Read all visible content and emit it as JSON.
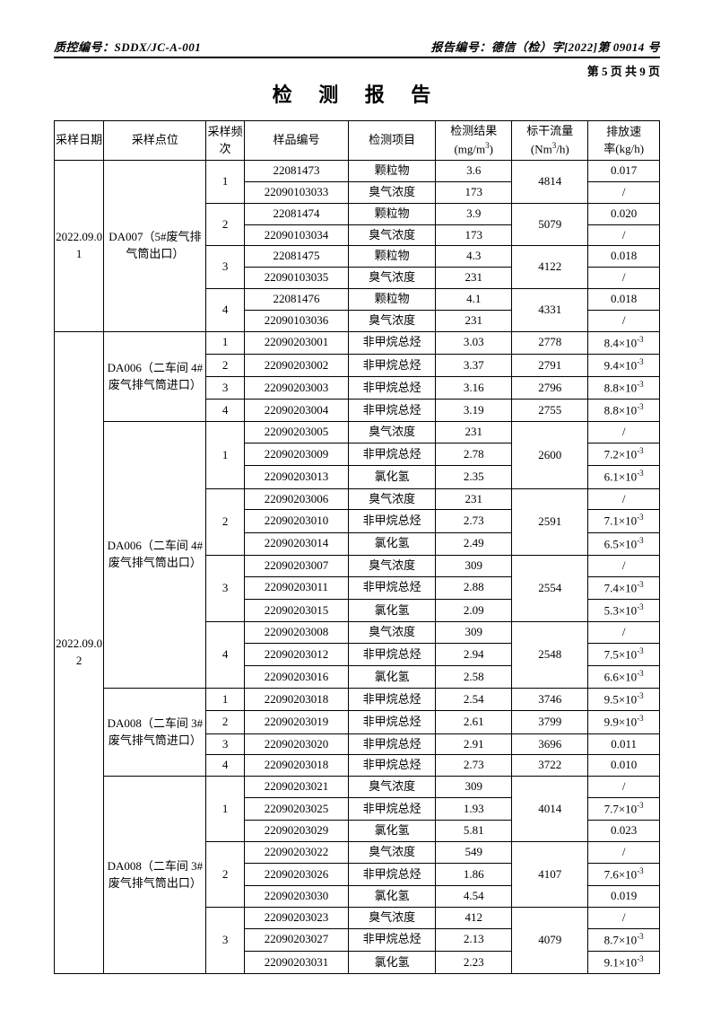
{
  "header": {
    "qc_label": "质控编号：SDDX/JC-A-001",
    "report_label": "报告编号：德信（检）字[2022]第 09014 号",
    "page_num": "第 5 页 共 9 页",
    "title": "检 测 报 告"
  },
  "columns": {
    "c1": "采样日期",
    "c2": "采样点位",
    "c3": "采样频次",
    "c4": "样品编号",
    "c5": "检测项目",
    "c6_l1": "检测结果",
    "c6_l2": "(mg/m",
    "c6_sup": "3",
    "c6_l3": ")",
    "c7_l1": "标干流量",
    "c7_l2": "(Nm",
    "c7_sup": "3",
    "c7_l3": "/h)",
    "c8_l1": "排放速",
    "c8_l2": "率(kg/h)"
  },
  "dates": {
    "d1": "2022.09.01",
    "d2": "2022.09.02"
  },
  "locs": {
    "l1": "DA007（5#废气排气筒出口）",
    "l2": "DA006（二车间 4#废气排气筒进口）",
    "l3": "DA006（二车间 4#废气排气筒出口）",
    "l4": "DA008（二车间 3#废气排气筒进口）",
    "l5": "DA008（二车间 3#废气排气筒出口）"
  },
  "freq": {
    "f1": "1",
    "f2": "2",
    "f3": "3",
    "f4": "4"
  },
  "items": {
    "pm": "颗粒物",
    "odor": "臭气浓度",
    "nmhc": "非甲烷总烃",
    "hcl": "氯化氢"
  },
  "slash": "/",
  "rows": [
    {
      "s": "22081473",
      "i": "pm",
      "r": "3.6",
      "f": "4814",
      "e": "0.017"
    },
    {
      "s": "22090103033",
      "i": "odor",
      "r": "173",
      "f": "",
      "e": "/"
    },
    {
      "s": "22081474",
      "i": "pm",
      "r": "3.9",
      "f": "5079",
      "e": "0.020"
    },
    {
      "s": "22090103034",
      "i": "odor",
      "r": "173",
      "f": "",
      "e": "/"
    },
    {
      "s": "22081475",
      "i": "pm",
      "r": "4.3",
      "f": "4122",
      "e": "0.018"
    },
    {
      "s": "22090103035",
      "i": "odor",
      "r": "231",
      "f": "",
      "e": "/"
    },
    {
      "s": "22081476",
      "i": "pm",
      "r": "4.1",
      "f": "4331",
      "e": "0.018"
    },
    {
      "s": "22090103036",
      "i": "odor",
      "r": "231",
      "f": "",
      "e": "/"
    },
    {
      "s": "22090203001",
      "i": "nmhc",
      "r": "3.03",
      "f": "2778",
      "e": "8.4×10",
      "sup": "-3"
    },
    {
      "s": "22090203002",
      "i": "nmhc",
      "r": "3.37",
      "f": "2791",
      "e": "9.4×10",
      "sup": "-3"
    },
    {
      "s": "22090203003",
      "i": "nmhc",
      "r": "3.16",
      "f": "2796",
      "e": "8.8×10",
      "sup": "-3"
    },
    {
      "s": "22090203004",
      "i": "nmhc",
      "r": "3.19",
      "f": "2755",
      "e": "8.8×10",
      "sup": "-3"
    },
    {
      "s": "22090203005",
      "i": "odor",
      "r": "231",
      "f": "2600",
      "e": "/"
    },
    {
      "s": "22090203009",
      "i": "nmhc",
      "r": "2.78",
      "f": "",
      "e": "7.2×10",
      "sup": "-3"
    },
    {
      "s": "22090203013",
      "i": "hcl",
      "r": "2.35",
      "f": "",
      "e": "6.1×10",
      "sup": "-3"
    },
    {
      "s": "22090203006",
      "i": "odor",
      "r": "231",
      "f": "2591",
      "e": "/"
    },
    {
      "s": "22090203010",
      "i": "nmhc",
      "r": "2.73",
      "f": "",
      "e": "7.1×10",
      "sup": "-3"
    },
    {
      "s": "22090203014",
      "i": "hcl",
      "r": "2.49",
      "f": "",
      "e": "6.5×10",
      "sup": "-3"
    },
    {
      "s": "22090203007",
      "i": "odor",
      "r": "309",
      "f": "2554",
      "e": "/"
    },
    {
      "s": "22090203011",
      "i": "nmhc",
      "r": "2.88",
      "f": "",
      "e": "7.4×10",
      "sup": "-3"
    },
    {
      "s": "22090203015",
      "i": "hcl",
      "r": "2.09",
      "f": "",
      "e": "5.3×10",
      "sup": "-3"
    },
    {
      "s": "22090203008",
      "i": "odor",
      "r": "309",
      "f": "2548",
      "e": "/"
    },
    {
      "s": "22090203012",
      "i": "nmhc",
      "r": "2.94",
      "f": "",
      "e": "7.5×10",
      "sup": "-3"
    },
    {
      "s": "22090203016",
      "i": "hcl",
      "r": "2.58",
      "f": "",
      "e": "6.6×10",
      "sup": "-3"
    },
    {
      "s": "22090203018",
      "i": "nmhc",
      "r": "2.54",
      "f": "3746",
      "e": "9.5×10",
      "sup": "-3"
    },
    {
      "s": "22090203019",
      "i": "nmhc",
      "r": "2.61",
      "f": "3799",
      "e": "9.9×10",
      "sup": "-3"
    },
    {
      "s": "22090203020",
      "i": "nmhc",
      "r": "2.91",
      "f": "3696",
      "e": "0.011"
    },
    {
      "s": "22090203018",
      "i": "nmhc",
      "r": "2.73",
      "f": "3722",
      "e": "0.010"
    },
    {
      "s": "22090203021",
      "i": "odor",
      "r": "309",
      "f": "4014",
      "e": "/"
    },
    {
      "s": "22090203025",
      "i": "nmhc",
      "r": "1.93",
      "f": "",
      "e": "7.7×10",
      "sup": "-3"
    },
    {
      "s": "22090203029",
      "i": "hcl",
      "r": "5.81",
      "f": "",
      "e": "0.023"
    },
    {
      "s": "22090203022",
      "i": "odor",
      "r": "549",
      "f": "4107",
      "e": "/"
    },
    {
      "s": "22090203026",
      "i": "nmhc",
      "r": "1.86",
      "f": "",
      "e": "7.6×10",
      "sup": "-3"
    },
    {
      "s": "22090203030",
      "i": "hcl",
      "r": "4.54",
      "f": "",
      "e": "0.019"
    },
    {
      "s": "22090203023",
      "i": "odor",
      "r": "412",
      "f": "4079",
      "e": "/"
    },
    {
      "s": "22090203027",
      "i": "nmhc",
      "r": "2.13",
      "f": "",
      "e": "8.7×10",
      "sup": "-3"
    },
    {
      "s": "22090203031",
      "i": "hcl",
      "r": "2.23",
      "f": "",
      "e": "9.1×10",
      "sup": "-3"
    }
  ]
}
